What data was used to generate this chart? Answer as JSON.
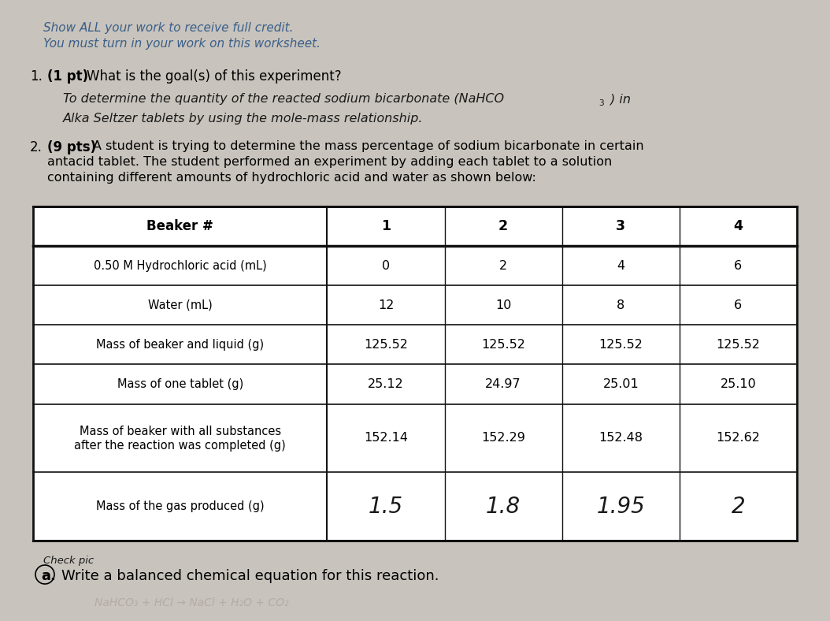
{
  "bg_color": "#c8c3bc",
  "header_text_line1": "Show ALL your work to receive full credit.",
  "header_text_line2": "You must turn in your work on this worksheet.",
  "header_color": "#3a5f8a",
  "q1_label_num": "1.",
  "q1_label_pts": "(1 pt)",
  "q1_label_rest": " What is the goal(s) of this experiment?",
  "q2_label_num": "2.",
  "q2_label_pts": "(9 pts)",
  "q2_label_rest": " A student is trying to determine the mass percentage of sodium bicarbonate in certain",
  "q2_label2": "antacid tablet. The student performed an experiment by adding each tablet to a solution",
  "q2_label3": "containing different amounts of hydrochloric acid and water as shown below:",
  "table_col_nums": [
    "1",
    "2",
    "3",
    "4"
  ],
  "table_header_label": "Beaker #",
  "row_labels": [
    "0.50 M Hydrochloric acid (mL)",
    "Water (mL)",
    "Mass of beaker and liquid (g)",
    "Mass of one tablet (g)",
    "Mass of beaker with all substances\nafter the reaction was completed (g)",
    "Mass of the gas produced (g)"
  ],
  "row_data": [
    [
      "0",
      "2",
      "4",
      "6"
    ],
    [
      "12",
      "10",
      "8",
      "6"
    ],
    [
      "125.52",
      "125.52",
      "125.52",
      "125.52"
    ],
    [
      "25.12",
      "24.97",
      "25.01",
      "25.10"
    ],
    [
      "152.14",
      "152.29",
      "152.48",
      "152.62"
    ],
    [
      "1.5",
      "1.8",
      "1.95",
      "2"
    ]
  ],
  "footer_note": "Check pic",
  "footer_label_a": "a.",
  "footer_label_rest": "  Write a balanced chemical equation for this reaction.",
  "handwriting_color": "#1a1a1a",
  "table_line_color": "#111111",
  "white": "#ffffff",
  "black": "#000000"
}
